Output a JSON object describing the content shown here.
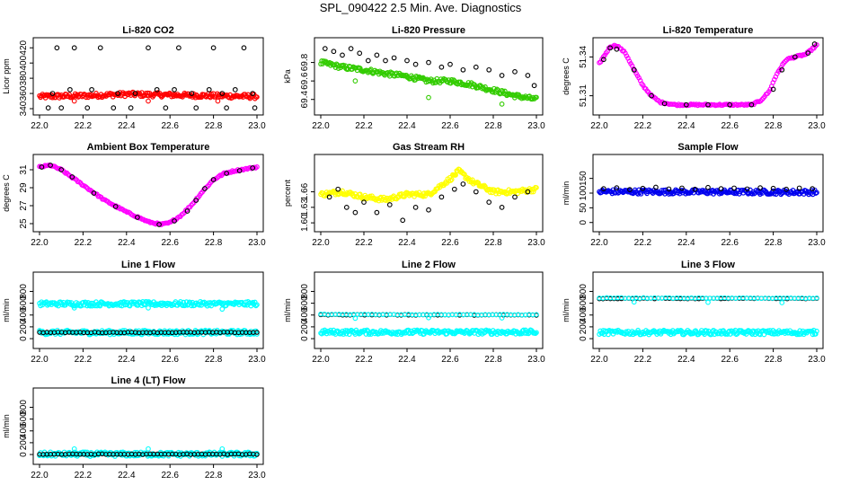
{
  "page_title": "SPL_090422  2.5 Min. Ave. Diagnostics",
  "chart_data": [
    {
      "type": "scatter",
      "title": "Li-820 CO2",
      "ylabel": "Licor ppm",
      "xlim": [
        22.0,
        23.0
      ],
      "ylim": [
        340,
        425
      ],
      "xticks": [
        "22.0",
        "22.2",
        "22.4",
        "22.6",
        "22.8",
        "23.0"
      ],
      "yticks": [
        "340",
        "360",
        "380",
        "400",
        "420"
      ],
      "series": [
        {
          "name": "black",
          "color": "#000000",
          "style": "scatter",
          "x": [
            22.04,
            22.08,
            22.1,
            22.16,
            22.22,
            22.28,
            22.34,
            22.42,
            22.5,
            22.58,
            22.64,
            22.72,
            22.8,
            22.86,
            22.94,
            22.99
          ],
          "y": [
            341,
            420,
            341,
            420,
            341,
            420,
            341,
            341,
            420,
            341,
            420,
            341,
            420,
            341,
            420,
            341
          ]
        },
        {
          "name": "black-2",
          "color": "#000000",
          "style": "scatter",
          "x": [
            22.06,
            22.14,
            22.24,
            22.36,
            22.44,
            22.54,
            22.62,
            22.7,
            22.78,
            22.84,
            22.9,
            22.98
          ],
          "y": [
            360,
            365,
            365,
            360,
            360,
            365,
            365,
            360,
            365,
            360,
            365,
            360
          ]
        },
        {
          "name": "red",
          "color": "#ff0000",
          "style": "band",
          "x": [
            22.0,
            22.2,
            22.4,
            22.6,
            22.8,
            23.0
          ],
          "y": [
            356,
            357,
            359,
            358,
            357,
            356
          ]
        },
        {
          "name": "red-outliers",
          "color": "#ff0000",
          "style": "scatter",
          "x": [
            22.16,
            22.5,
            22.82
          ],
          "y": [
            350,
            350,
            350
          ]
        }
      ]
    },
    {
      "type": "scatter",
      "title": "Li-820 Pressure",
      "ylabel": "kPa",
      "xlim": [
        22.0,
        23.0
      ],
      "ylim": [
        69.3,
        70.0
      ],
      "xticks": [
        "22.0",
        "22.2",
        "22.4",
        "22.6",
        "22.8",
        "23.0"
      ],
      "yticks": [
        "69.4",
        "69.6",
        "69.8"
      ],
      "series": [
        {
          "name": "black",
          "color": "#000000",
          "style": "scatter",
          "x": [
            22.02,
            22.06,
            22.1,
            22.14,
            22.18,
            22.22,
            22.26,
            22.3,
            22.34,
            22.4,
            22.44,
            22.5,
            22.56,
            22.6,
            22.66,
            22.72,
            22.78,
            22.84,
            22.9,
            22.96,
            22.99
          ],
          "y": [
            69.95,
            69.92,
            69.88,
            69.95,
            69.9,
            69.82,
            69.88,
            69.82,
            69.85,
            69.82,
            69.78,
            69.8,
            69.75,
            69.78,
            69.72,
            69.75,
            69.72,
            69.66,
            69.7,
            69.66,
            69.55
          ]
        },
        {
          "name": "green",
          "color": "#33cc00",
          "style": "band",
          "x": [
            22.0,
            22.1,
            22.2,
            22.3,
            22.4,
            22.5,
            22.6,
            22.7,
            22.8,
            22.9,
            23.0
          ],
          "y": [
            69.8,
            69.75,
            69.72,
            69.68,
            69.65,
            69.6,
            69.6,
            69.56,
            69.5,
            69.44,
            69.4
          ]
        },
        {
          "name": "green-outliers",
          "color": "#33cc00",
          "style": "scatter",
          "x": [
            22.16,
            22.5,
            22.84
          ],
          "y": [
            69.6,
            69.42,
            69.35
          ]
        }
      ]
    },
    {
      "type": "line",
      "title": "Li-820 Temperature",
      "ylabel": "degrees C",
      "xlim": [
        22.0,
        23.0
      ],
      "ylim": [
        51.3,
        51.35
      ],
      "xticks": [
        "22.0",
        "22.2",
        "22.4",
        "22.6",
        "22.8",
        "23.0"
      ],
      "yticks": [
        "51.31",
        "51.34"
      ],
      "series": [
        {
          "name": "magenta",
          "color": "#ff00ff",
          "style": "thickline",
          "x": [
            22.0,
            22.05,
            22.08,
            22.12,
            22.16,
            22.2,
            22.24,
            22.28,
            22.35,
            22.5,
            22.6,
            22.7,
            22.74,
            22.78,
            22.82,
            22.86,
            22.9,
            22.95,
            23.0
          ],
          "y": [
            51.335,
            51.348,
            51.349,
            51.343,
            51.33,
            51.318,
            51.31,
            51.305,
            51.303,
            51.303,
            51.303,
            51.303,
            51.306,
            51.313,
            51.328,
            51.338,
            51.34,
            51.342,
            51.349
          ]
        },
        {
          "name": "black",
          "color": "#000000",
          "style": "scatter",
          "x": [
            22.02,
            22.05,
            22.08,
            22.16,
            22.24,
            22.3,
            22.4,
            22.5,
            22.6,
            22.7,
            22.8,
            22.84,
            22.9,
            22.96,
            22.99
          ],
          "y": [
            51.338,
            51.347,
            51.346,
            51.33,
            51.31,
            51.304,
            51.303,
            51.303,
            51.303,
            51.303,
            51.315,
            51.33,
            51.34,
            51.343,
            51.35
          ]
        }
      ]
    },
    {
      "type": "line",
      "title": "Ambient Box Temperature",
      "ylabel": "degrees C",
      "xlim": [
        22.0,
        23.0
      ],
      "ylim": [
        24.8,
        32.0
      ],
      "xticks": [
        "22.0",
        "22.2",
        "22.4",
        "22.6",
        "22.8",
        "23.0"
      ],
      "yticks": [
        "25",
        "27",
        "29",
        "31"
      ],
      "series": [
        {
          "name": "magenta",
          "color": "#ff00ff",
          "style": "thickline",
          "x": [
            22.0,
            22.05,
            22.1,
            22.2,
            22.3,
            22.4,
            22.5,
            22.56,
            22.6,
            22.65,
            22.7,
            22.75,
            22.8,
            22.85,
            22.9,
            23.0
          ],
          "y": [
            31.3,
            31.5,
            31.0,
            29.3,
            27.6,
            26.3,
            25.2,
            24.9,
            25.1,
            25.9,
            27.1,
            28.6,
            29.9,
            30.6,
            30.9,
            31.3
          ]
        },
        {
          "name": "black",
          "color": "#000000",
          "style": "scatter",
          "x": [
            22.01,
            22.05,
            22.1,
            22.15,
            22.25,
            22.35,
            22.45,
            22.55,
            22.62,
            22.68,
            22.72,
            22.76,
            22.8,
            22.86,
            22.92,
            22.98
          ],
          "y": [
            31.3,
            31.5,
            31.0,
            30.2,
            28.4,
            26.9,
            25.7,
            24.9,
            25.3,
            26.4,
            27.6,
            28.9,
            29.9,
            30.6,
            30.9,
            31.2
          ]
        }
      ]
    },
    {
      "type": "scatter",
      "title": "Gas Stream RH",
      "ylabel": "percent",
      "xlim": [
        22.0,
        23.0
      ],
      "ylim": [
        1.595,
        1.72
      ],
      "xticks": [
        "22.0",
        "22.2",
        "22.4",
        "22.6",
        "22.8",
        "23.0"
      ],
      "yticks": [
        "1.60",
        "1.63",
        "1.66"
      ],
      "series": [
        {
          "name": "yellow",
          "color": "#ffff00",
          "style": "band",
          "x": [
            22.0,
            22.1,
            22.2,
            22.3,
            22.4,
            22.5,
            22.6,
            22.64,
            22.7,
            22.8,
            22.9,
            23.0
          ],
          "y": [
            1.655,
            1.66,
            1.65,
            1.645,
            1.655,
            1.655,
            1.685,
            1.7,
            1.68,
            1.66,
            1.66,
            1.665
          ]
        },
        {
          "name": "black",
          "color": "#000000",
          "style": "scatter",
          "x": [
            22.04,
            22.08,
            22.12,
            22.16,
            22.2,
            22.26,
            22.32,
            22.38,
            22.44,
            22.5,
            22.56,
            22.62,
            22.66,
            22.72,
            22.78,
            22.84,
            22.9,
            22.96
          ],
          "y": [
            1.65,
            1.665,
            1.63,
            1.62,
            1.64,
            1.62,
            1.635,
            1.605,
            1.63,
            1.625,
            1.65,
            1.665,
            1.675,
            1.66,
            1.64,
            1.63,
            1.65,
            1.66
          ]
        }
      ]
    },
    {
      "type": "scatter",
      "title": "Sample Flow",
      "ylabel": "ml/min",
      "xlim": [
        22.0,
        23.0
      ],
      "ylim": [
        -10,
        210
      ],
      "xticks": [
        "22.0",
        "22.2",
        "22.4",
        "22.6",
        "22.8",
        "23.0"
      ],
      "yticks": [
        "0",
        "50",
        "100",
        "150"
      ],
      "series": [
        {
          "name": "blue",
          "color": "#0000ee",
          "style": "band",
          "x": [
            22.0,
            23.0
          ],
          "y": [
            105,
            103
          ]
        },
        {
          "name": "black",
          "color": "#000000",
          "style": "scatter",
          "x": [
            22.02,
            22.08,
            22.14,
            22.2,
            22.26,
            22.32,
            22.38,
            22.44,
            22.5,
            22.56,
            22.62,
            22.68,
            22.74,
            22.8,
            22.86,
            22.92,
            22.98
          ],
          "y": [
            115,
            118,
            112,
            116,
            120,
            114,
            117,
            113,
            119,
            115,
            117,
            114,
            118,
            116,
            113,
            117,
            115
          ]
        }
      ]
    },
    {
      "type": "scatter",
      "title": "Line 1 Flow",
      "ylabel": "ml/min",
      "xlim": [
        22.0,
        23.0
      ],
      "ylim": [
        -60,
        1020
      ],
      "xticks": [
        "22.0",
        "22.2",
        "22.4",
        "22.6",
        "22.8",
        "23.0"
      ],
      "yticks": [
        "0",
        "200",
        "400",
        "600",
        "800"
      ],
      "series": [
        {
          "name": "cyan",
          "color": "#00ffff",
          "style": "band",
          "x": [
            22.0,
            23.0
          ],
          "y": [
            590,
            590
          ]
        },
        {
          "name": "cyan-low",
          "color": "#00ffff",
          "style": "band",
          "x": [
            22.0,
            23.0
          ],
          "y": [
            105,
            105
          ]
        },
        {
          "name": "black",
          "color": "#000000",
          "style": "dense",
          "x": [
            22.0,
            23.0
          ],
          "y": [
            105,
            105
          ]
        },
        {
          "name": "cyan-outliers",
          "color": "#00ffff",
          "style": "scatter",
          "x": [
            22.16,
            22.5,
            22.84
          ],
          "y": [
            520,
            520,
            500
          ]
        }
      ]
    },
    {
      "type": "scatter",
      "title": "Line 2 Flow",
      "ylabel": "ml/min",
      "xlim": [
        22.0,
        23.0
      ],
      "ylim": [
        -60,
        1020
      ],
      "xticks": [
        "22.0",
        "22.2",
        "22.4",
        "22.6",
        "22.8",
        "23.0"
      ],
      "yticks": [
        "0",
        "200",
        "400",
        "600",
        "800"
      ],
      "series": [
        {
          "name": "cyan",
          "color": "#00ffff",
          "style": "band",
          "x": [
            22.0,
            23.0
          ],
          "y": [
            110,
            110
          ]
        },
        {
          "name": "black",
          "color": "#000000",
          "style": "dense",
          "x": [
            22.0,
            23.0
          ],
          "y": [
            405,
            400
          ]
        },
        {
          "name": "cyan-upper",
          "color": "#00ffff",
          "style": "dense",
          "x": [
            22.0,
            23.0
          ],
          "y": [
            412,
            405
          ]
        },
        {
          "name": "cyan-outliers",
          "color": "#00ffff",
          "style": "scatter",
          "x": [
            22.16,
            22.5,
            22.84
          ],
          "y": [
            345,
            355,
            350
          ]
        }
      ]
    },
    {
      "type": "scatter",
      "title": "Line 3 Flow",
      "ylabel": "ml/min",
      "xlim": [
        22.0,
        23.0
      ],
      "ylim": [
        -60,
        1020
      ],
      "xticks": [
        "22.0",
        "22.2",
        "22.4",
        "22.6",
        "22.8",
        "23.0"
      ],
      "yticks": [
        "0",
        "200",
        "400",
        "600",
        "800"
      ],
      "series": [
        {
          "name": "cyan",
          "color": "#00ffff",
          "style": "band",
          "x": [
            22.0,
            23.0
          ],
          "y": [
            105,
            105
          ]
        },
        {
          "name": "black",
          "color": "#000000",
          "style": "dense",
          "x": [
            22.0,
            23.0
          ],
          "y": [
            680,
            680
          ]
        },
        {
          "name": "cyan-upper",
          "color": "#00ffff",
          "style": "dense",
          "x": [
            22.0,
            23.0
          ],
          "y": [
            690,
            685
          ]
        },
        {
          "name": "cyan-outliers",
          "color": "#00ffff",
          "style": "scatter",
          "x": [
            22.16,
            22.5,
            22.84
          ],
          "y": [
            620,
            615,
            610
          ]
        }
      ]
    },
    {
      "type": "scatter",
      "title": "Line 4 (LT) Flow",
      "ylabel": "ml/min",
      "xlim": [
        22.0,
        23.0
      ],
      "ylim": [
        -60,
        1020
      ],
      "xticks": [
        "22.0",
        "22.2",
        "22.4",
        "22.6",
        "22.8",
        "23.0"
      ],
      "yticks": [
        "0",
        "200",
        "400",
        "600",
        "800"
      ],
      "series": [
        {
          "name": "cyan",
          "color": "#00ffff",
          "style": "band",
          "x": [
            22.0,
            23.0
          ],
          "y": [
            5,
            5
          ]
        },
        {
          "name": "black",
          "color": "#000000",
          "style": "dense",
          "x": [
            22.0,
            23.0
          ],
          "y": [
            5,
            5
          ]
        },
        {
          "name": "cyan-outliers",
          "color": "#00ffff",
          "style": "scatter",
          "x": [
            22.16,
            22.5,
            22.84
          ],
          "y": [
            95,
            95,
            95
          ]
        }
      ]
    }
  ]
}
